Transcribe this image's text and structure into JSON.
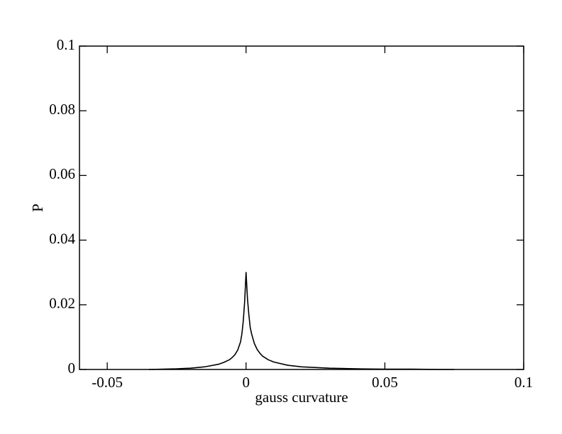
{
  "chart_data": {
    "type": "line",
    "x_label": "gauss curvature",
    "y_label": "P",
    "xlim": [
      -0.06,
      0.1
    ],
    "xticks": [
      -0.05,
      0,
      0.05,
      0.1
    ],
    "ylim": [
      0,
      0.1
    ],
    "yticks": [
      0,
      0.02,
      0.04,
      0.06,
      0.08,
      0.1
    ],
    "grid": false,
    "series": [
      {
        "color": "#000000",
        "x": [
          -0.035,
          -0.03,
          -0.025,
          -0.02,
          -0.015,
          -0.01,
          -0.008,
          -0.006,
          -0.005,
          -0.004,
          -0.003,
          -0.002,
          -0.0015,
          -0.001,
          -0.0005,
          0,
          0.0005,
          0.001,
          0.0015,
          0.002,
          0.003,
          0.004,
          0.005,
          0.006,
          0.008,
          0.01,
          0.015,
          0.02,
          0.03,
          0.04,
          0.05,
          0.06,
          0.07,
          0.075
        ],
        "values": [
          0,
          0.0001,
          0.0002,
          0.0004,
          0.0008,
          0.0016,
          0.0022,
          0.003,
          0.0037,
          0.0046,
          0.006,
          0.0085,
          0.011,
          0.015,
          0.021,
          0.03,
          0.022,
          0.017,
          0.013,
          0.011,
          0.008,
          0.0062,
          0.005,
          0.0041,
          0.003,
          0.0023,
          0.0013,
          0.0008,
          0.0004,
          0.0002,
          0.0001,
          0.0001,
          0,
          0
        ]
      }
    ]
  }
}
